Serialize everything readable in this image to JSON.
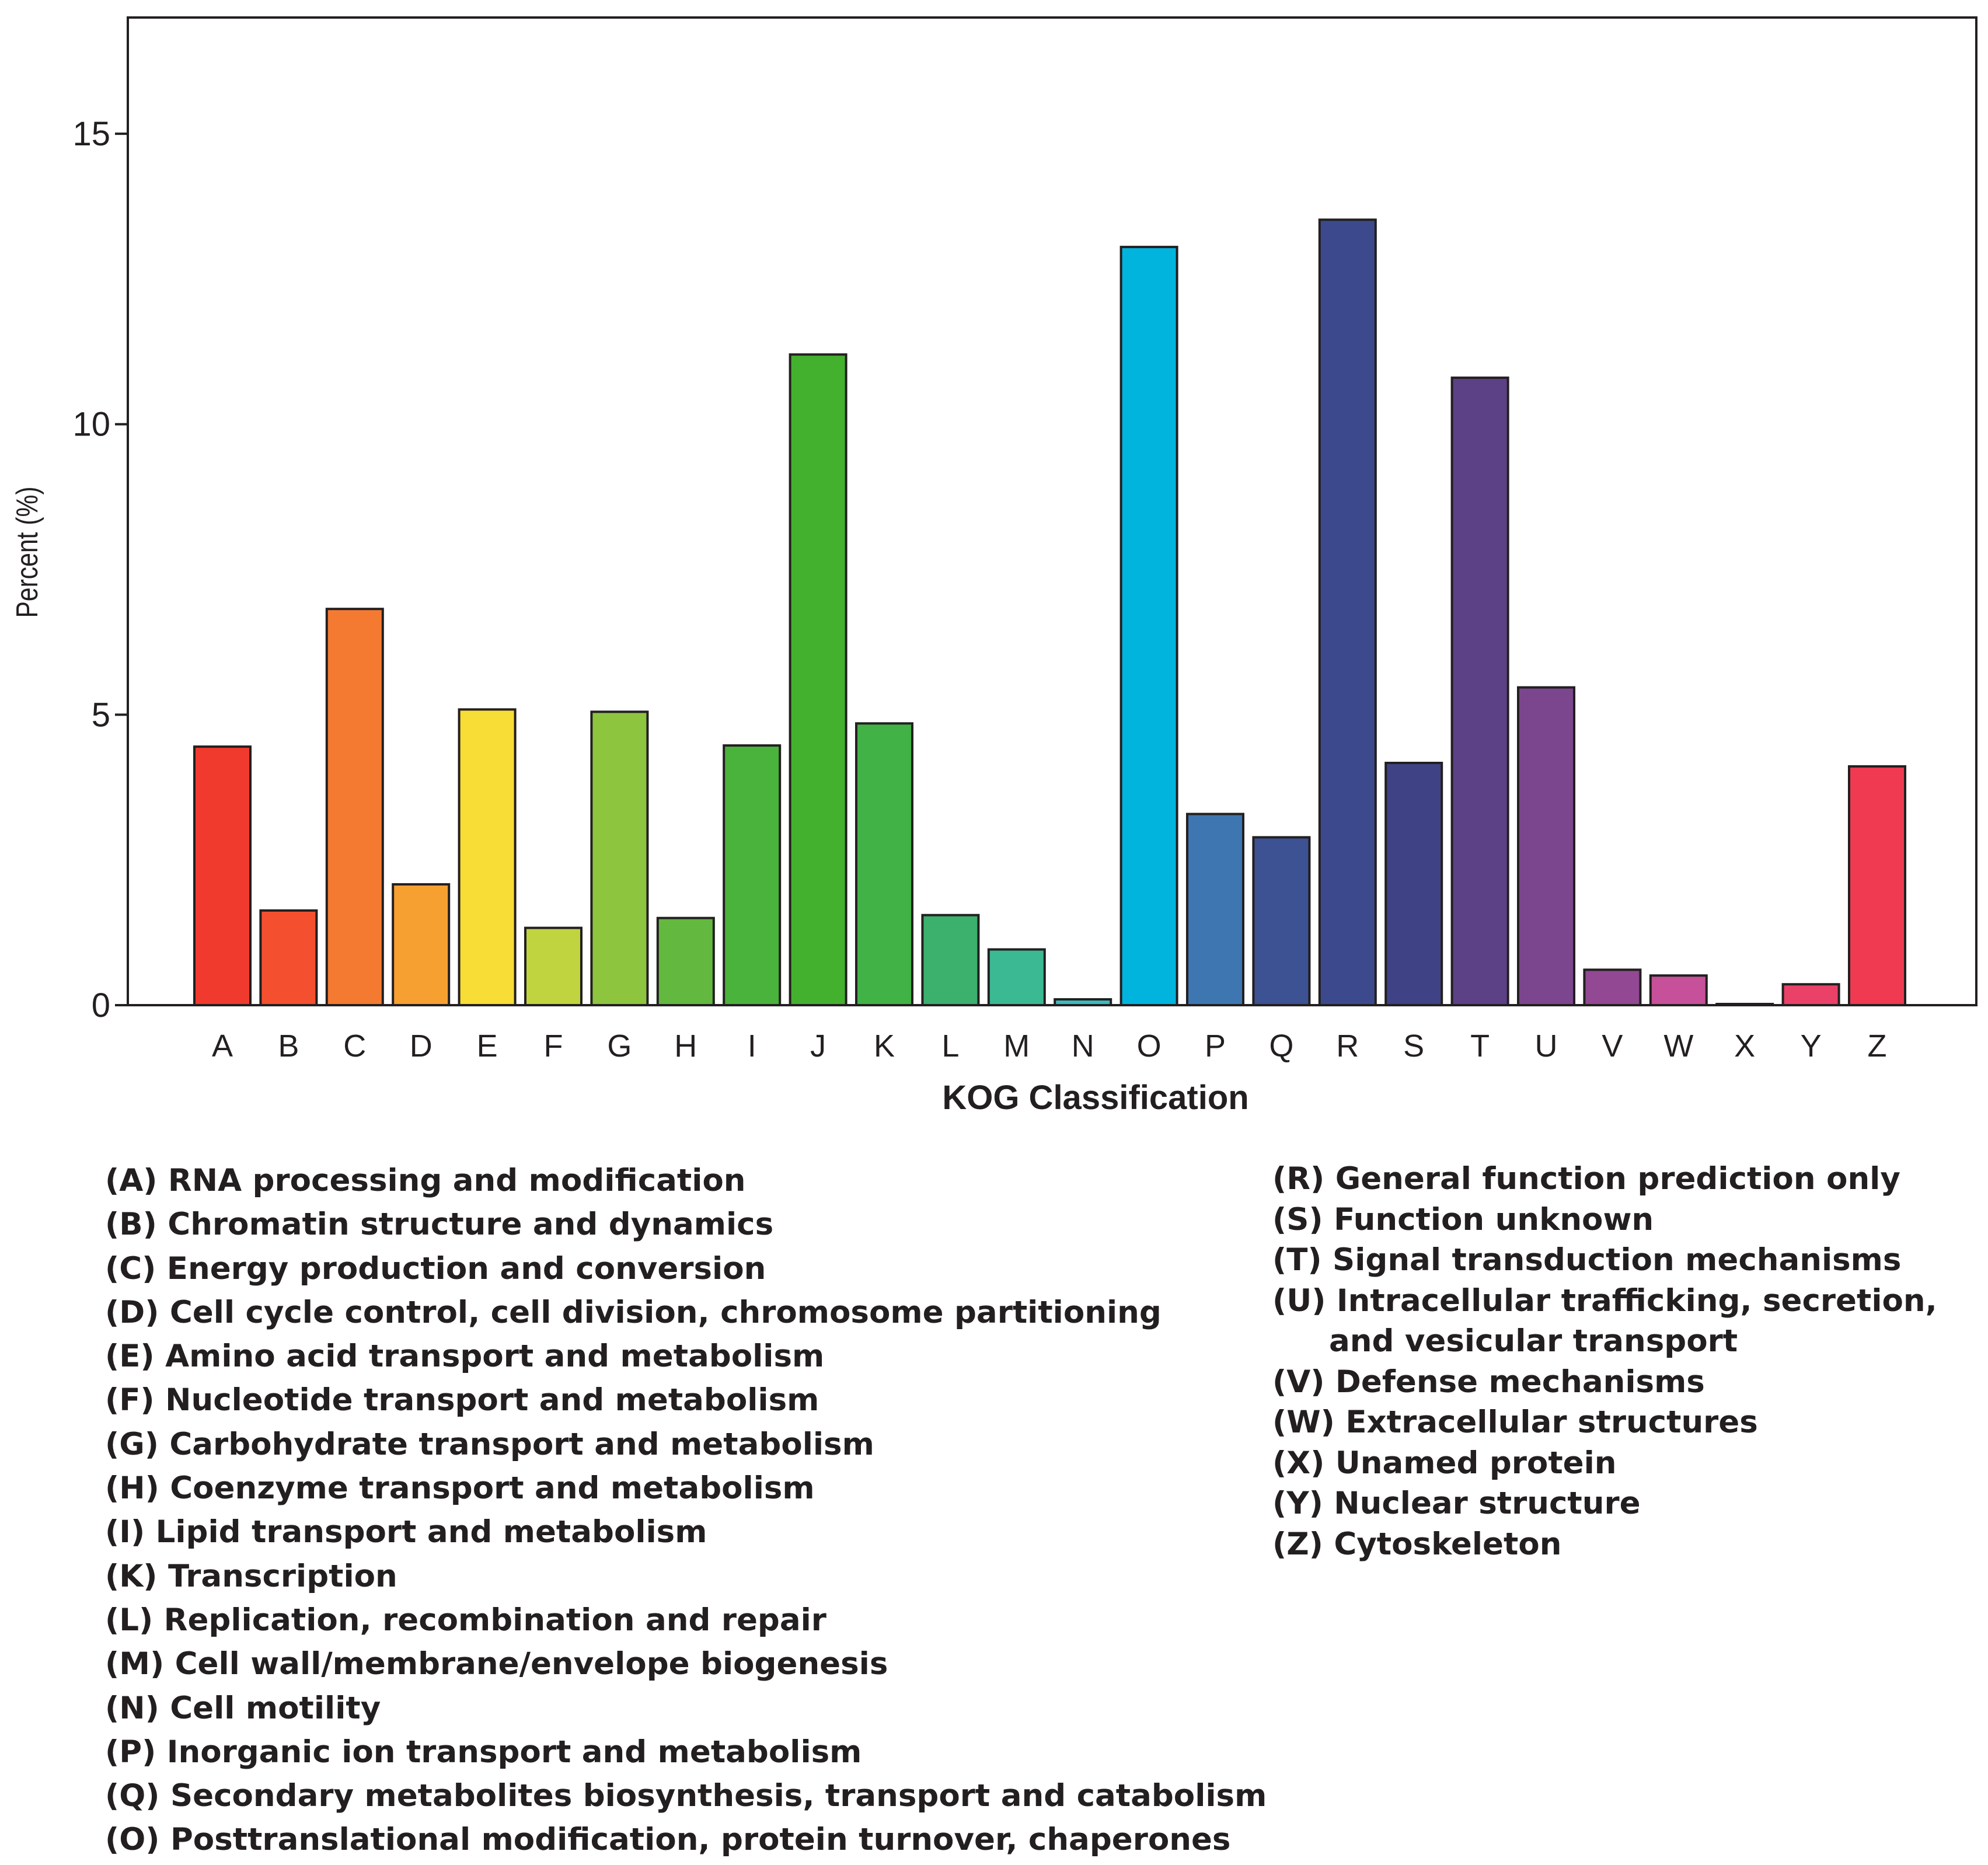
{
  "chart_data": {
    "type": "bar",
    "title": "",
    "xlabel": "KOG Classification",
    "ylabel": "Percent (%)",
    "ylim": [
      0,
      17
    ],
    "yticks": [
      0,
      5,
      10,
      15
    ],
    "grid": false,
    "categories": [
      "A",
      "B",
      "C",
      "D",
      "E",
      "F",
      "G",
      "H",
      "I",
      "J",
      "K",
      "L",
      "M",
      "N",
      "O",
      "P",
      "Q",
      "R",
      "S",
      "T",
      "U",
      "V",
      "W",
      "X",
      "Y",
      "Z"
    ],
    "values": [
      4.45,
      1.63,
      6.82,
      2.08,
      5.09,
      1.33,
      5.05,
      1.5,
      4.47,
      11.2,
      4.85,
      1.55,
      0.96,
      0.1,
      13.05,
      3.29,
      2.89,
      13.52,
      4.17,
      10.8,
      5.47,
      0.61,
      0.51,
      0.02,
      0.36,
      4.11
    ],
    "colors": [
      "#f03a2e",
      "#f4502f",
      "#f47a32",
      "#f7a032",
      "#f7dd35",
      "#c0d43f",
      "#8dc53e",
      "#63b93f",
      "#4ab33b",
      "#43b12e",
      "#41b346",
      "#3cb06d",
      "#3bb992",
      "#3bbcbe",
      "#00b4de",
      "#3e76b1",
      "#3c5292",
      "#3c4a8d",
      "#3f4285",
      "#5c4187",
      "#7c468e",
      "#924893",
      "#c7509a",
      "#d94b7b",
      "#ea4168",
      "#ef3a52"
    ],
    "legend": {
      "left": [
        "(A) RNA processing and modification",
        "(B) Chromatin structure and dynamics",
        "(C) Energy production and conversion",
        "(D) Cell cycle control, cell division, chromosome partitioning",
        "(E) Amino acid transport and metabolism",
        "(F) Nucleotide transport and metabolism",
        "(G) Carbohydrate transport and metabolism",
        "(H) Coenzyme transport and metabolism",
        "(I) Lipid transport and metabolism",
        "(K) Transcription",
        "(L) Replication, recombination and repair",
        "(M) Cell wall/membrane/envelope biogenesis",
        "(N) Cell motility",
        "(P) Inorganic ion transport and metabolism",
        "(Q) Secondary metabolites biosynthesis, transport and catabolism",
        "(O) Posttranslational modification, protein turnover, chaperones"
      ],
      "right": [
        "(R) General function prediction only",
        "(S) Function unknown",
        "(T) Signal transduction mechanisms",
        "(U) Intracellular trafficking, secretion,",
        "and vesicular transport",
        "(V) Defense mechanisms",
        "(W) Extracellular structures",
        "(X) Unamed protein",
        "(Y) Nuclear structure",
        "(Z) Cytoskeleton"
      ]
    }
  }
}
